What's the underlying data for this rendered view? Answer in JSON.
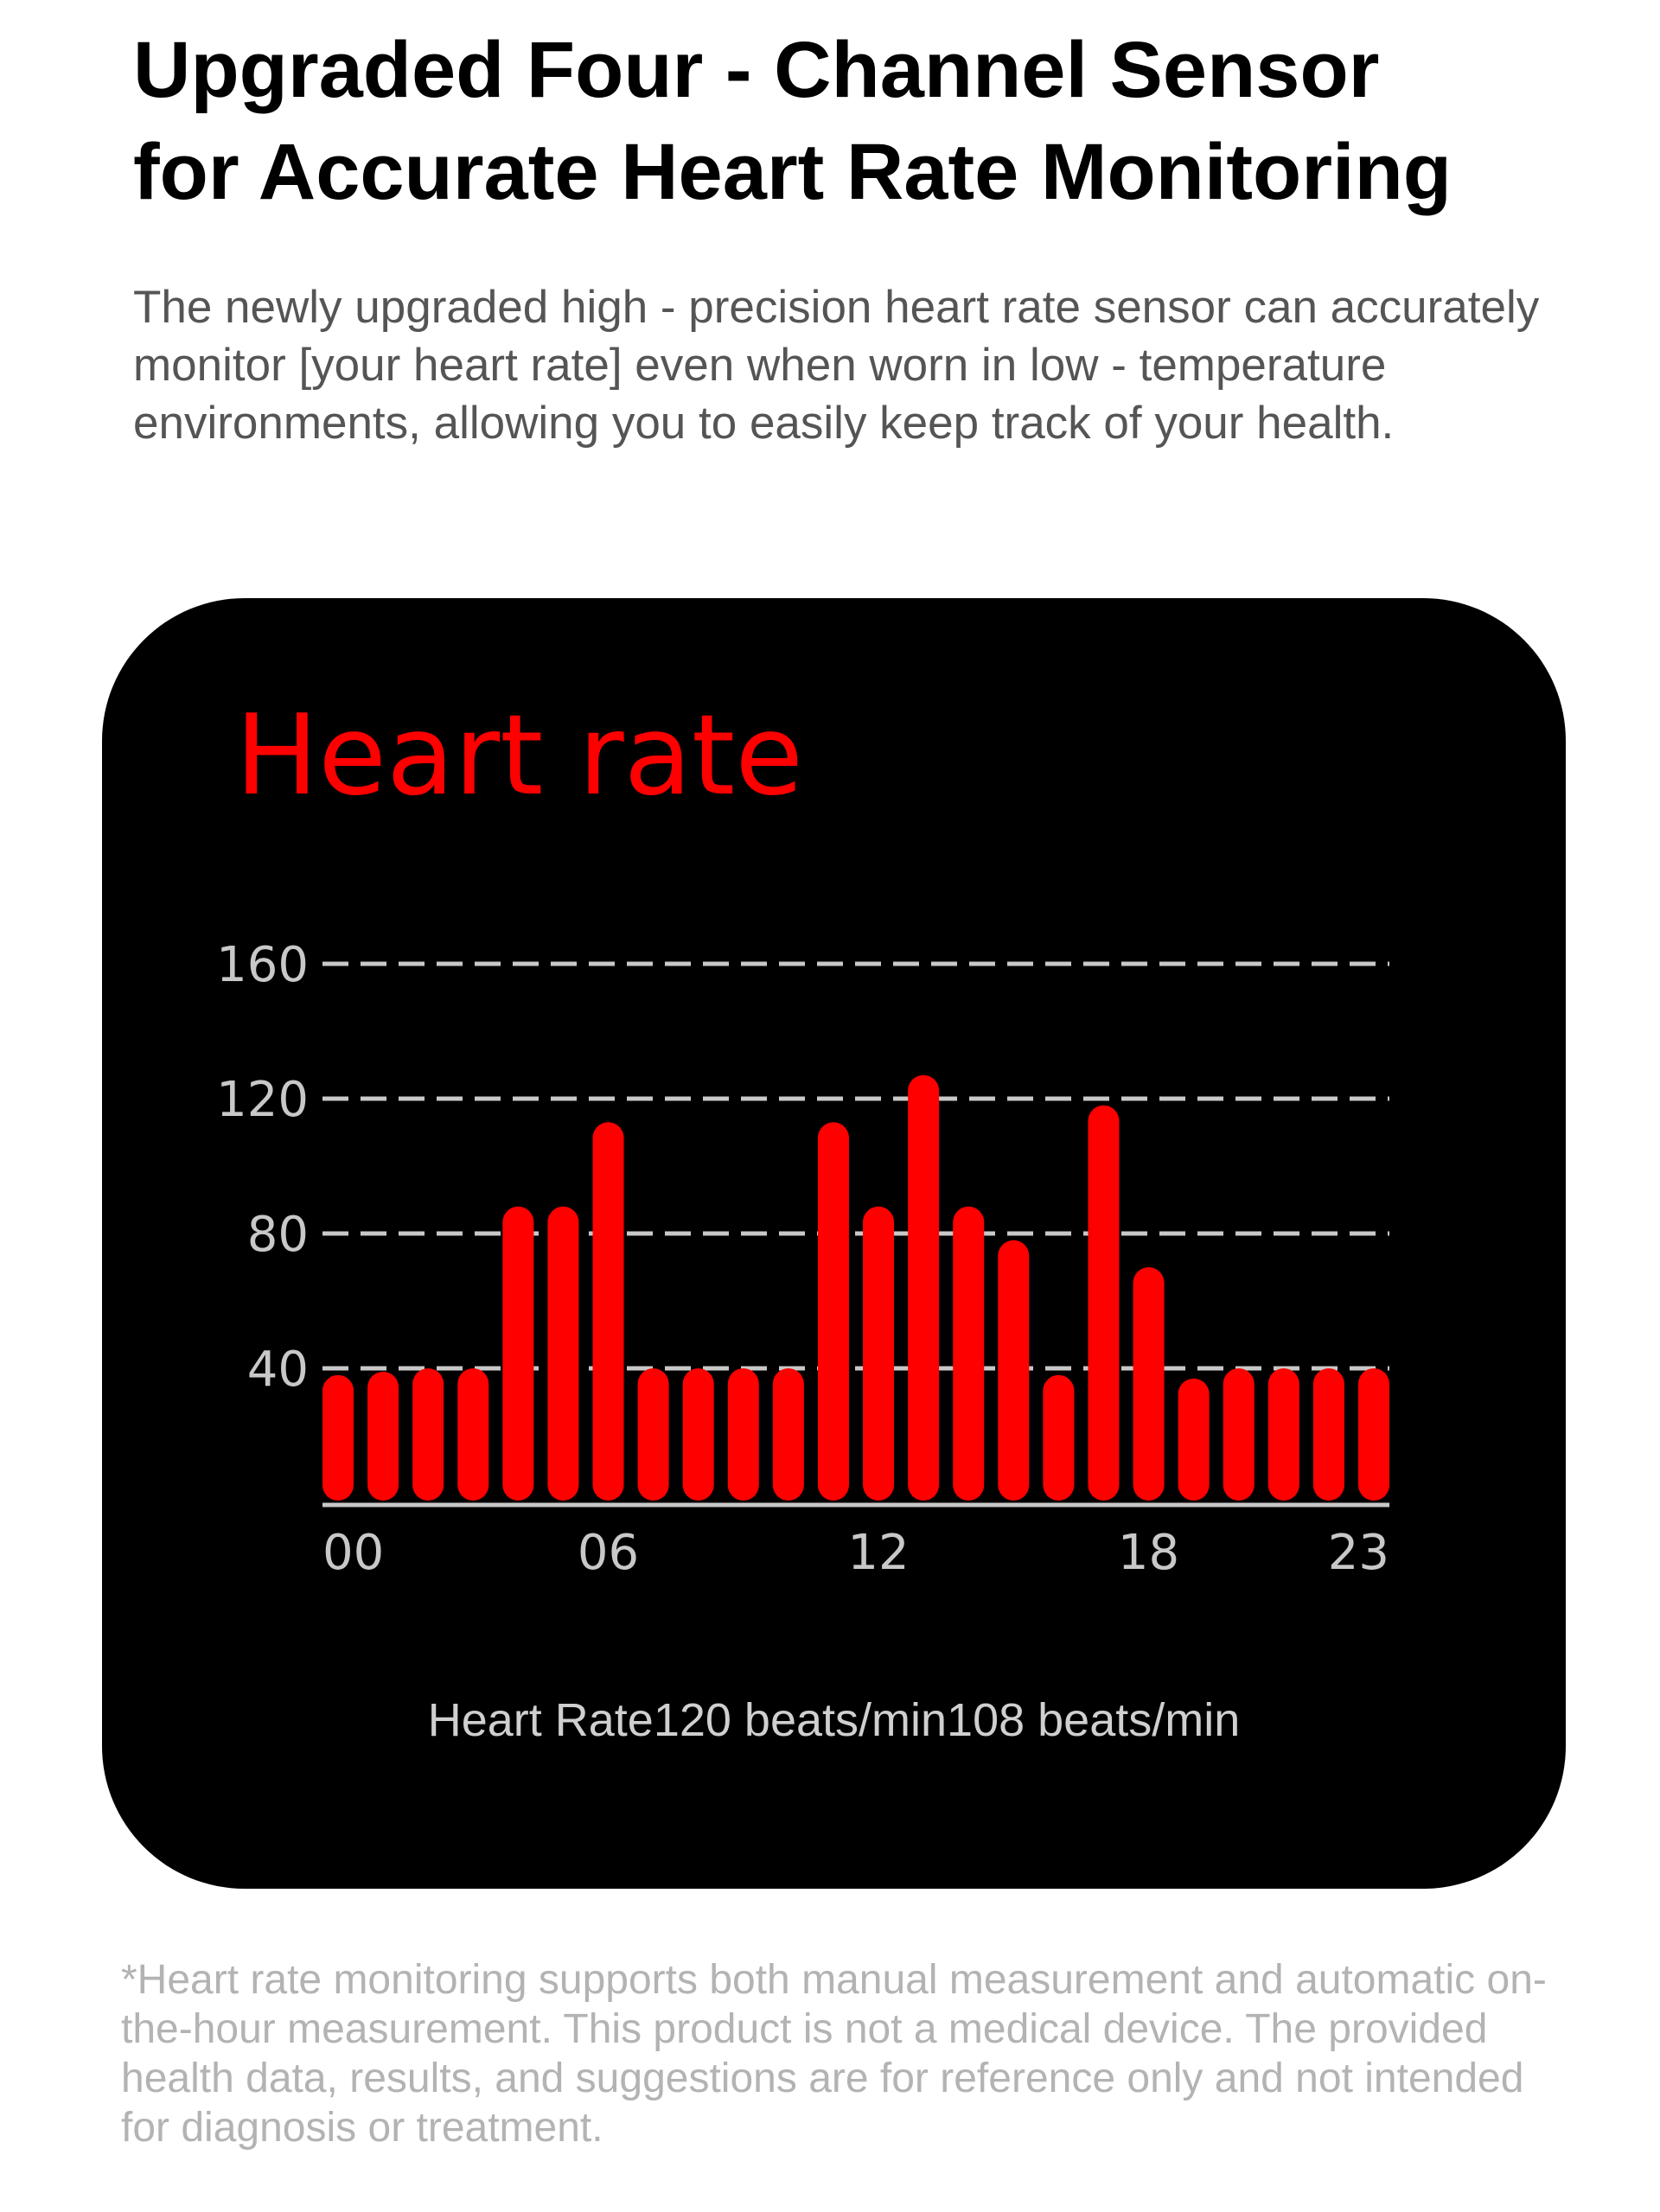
{
  "header": {
    "title_line1": "Upgraded Four - Channel Sensor",
    "title_line2": "for Accurate Heart Rate Monitoring",
    "description": "The newly upgraded high - precision heart rate sensor can accurately monitor [your heart rate] even when worn in low - temperature environments, allowing you to easily keep track of your health."
  },
  "colors": {
    "bar": "#ff0000",
    "grid": "#c8c8c8",
    "card": "#000000"
  },
  "chart_data": {
    "type": "bar",
    "title": "Heart rate",
    "xlabel": "",
    "ylabel": "",
    "ylim": [
      0,
      160
    ],
    "yticks": [
      "40",
      "80",
      "120",
      "160"
    ],
    "xticks": [
      "00",
      "06",
      "12",
      "18",
      "23"
    ],
    "xtick_hours": [
      0,
      6,
      12,
      18,
      23
    ],
    "categories": [
      "00",
      "01",
      "02",
      "03",
      "04",
      "05",
      "06",
      "07",
      "08",
      "09",
      "10",
      "11",
      "12",
      "13",
      "14",
      "15",
      "16",
      "17",
      "18",
      "19",
      "20",
      "21",
      "22",
      "23"
    ],
    "values": [
      38,
      39,
      40,
      40,
      88,
      88,
      113,
      40,
      40,
      40,
      40,
      113,
      88,
      127,
      88,
      78,
      38,
      118,
      70,
      37,
      40,
      40,
      40,
      40
    ],
    "grid": "dashed horizontal",
    "summary": "Heart Rate120 beats/min108 beats/min"
  },
  "footnote": "*Heart rate monitoring supports both manual measurement and automatic on-the-hour measurement. This product is not a medical device. The provided health data, results, and suggestions are for reference only and not intended for diagnosis or treatment."
}
